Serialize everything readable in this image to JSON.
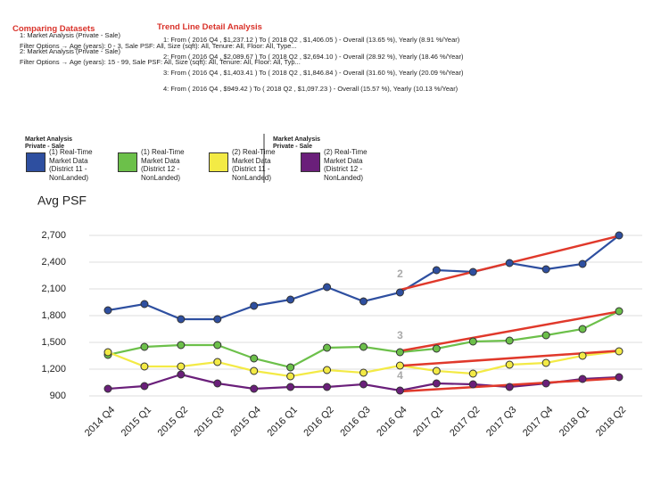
{
  "chart_data": {
    "type": "line",
    "header": {
      "compare_title": "Comparing Datasets",
      "compare_lines": [
        "1: Market Analysis (Private - Sale)",
        "Filter Options → Age (years): 0 - 3, Sale PSF: All, Size (sqft): All, Tenure: All, Floor: All, Type...",
        "2: Market Analysis (Private - Sale)",
        "Filter Options → Age (years): 15 - 99, Sale PSF: All, Size (sqft): All, Tenure: All, Floor: All, Typ..."
      ],
      "trend_title": "Trend Line Detail Analysis",
      "trend_lines": [
        "1: From ( 2016 Q4 , $1,237.12 ) To ( 2018 Q2 , $1,406.05 ) - Overall (13.65 %), Yearly (8.91 %/Year)",
        "2: From ( 2016 Q4 , $2,089.67 ) To ( 2018 Q2 , $2,694.10 ) - Overall (28.92 %), Yearly (18.46 %/Year)",
        "3: From ( 2016 Q4 , $1,403.41 ) To ( 2018 Q2 , $1,846.84 ) - Overall (31.60 %), Yearly (20.09 %/Year)",
        "4: From ( 2016 Q4 , $949.42 ) To ( 2018 Q2 , $1,097.23 ) - Overall (15.57 %), Yearly (10.13 %/Year)"
      ]
    },
    "legend_groups": [
      "Market Analysis Private - Sale",
      "Market Analysis Private - Sale"
    ],
    "y_label": "Avg PSF",
    "categories": [
      "2014 Q4",
      "2015 Q1",
      "2015 Q2",
      "2015 Q3",
      "2015 Q4",
      "2016 Q1",
      "2016 Q2",
      "2016 Q3",
      "2016 Q4",
      "2017 Q1",
      "2017 Q2",
      "2017 Q3",
      "2017 Q4",
      "2018 Q1",
      "2018 Q2"
    ],
    "series": [
      {
        "name": "(1) Real-Time Market Data (District 11 - NonLanded)",
        "color": "#2e4fa0",
        "values": [
          1860,
          1930,
          1760,
          1760,
          1910,
          1980,
          2120,
          1960,
          2060,
          2310,
          2290,
          2390,
          2320,
          2380,
          2700
        ]
      },
      {
        "name": "(1) Real-Time Market Data (District 12 - NonLanded)",
        "color": "#6cc04a",
        "values": [
          1360,
          1450,
          1470,
          1470,
          1320,
          1220,
          1440,
          1450,
          1390,
          1430,
          1510,
          1520,
          1580,
          1650,
          1850
        ]
      },
      {
        "name": "(2) Real-Time Market Data (District 11 - NonLanded)",
        "color": "#f3ea45",
        "values": [
          1390,
          1230,
          1230,
          1280,
          1180,
          1120,
          1190,
          1160,
          1240,
          1180,
          1150,
          1250,
          1270,
          1350,
          1400
        ]
      },
      {
        "name": "(2) Real-Time Market Data (District 12 - NonLanded)",
        "color": "#6a1f7a",
        "values": [
          980,
          1010,
          1140,
          1040,
          980,
          1000,
          1000,
          1030,
          960,
          1040,
          1030,
          1000,
          1040,
          1090,
          1110
        ]
      }
    ],
    "trends": [
      {
        "x": [
          "2016 Q4",
          "2018 Q2"
        ],
        "values": [
          1237.12,
          1406.05
        ]
      },
      {
        "x": [
          "2016 Q4",
          "2018 Q2"
        ],
        "values": [
          2089.67,
          2694.1
        ],
        "label": "2"
      },
      {
        "x": [
          "2016 Q4",
          "2018 Q2"
        ],
        "values": [
          1403.41,
          1846.84
        ],
        "label": "3"
      },
      {
        "x": [
          "2016 Q4",
          "2018 Q2"
        ],
        "values": [
          949.42,
          1097.23
        ],
        "label": "4"
      }
    ],
    "trend_color": "#e0392b",
    "ylim": [
      900,
      2700
    ],
    "yticks": [
      900,
      {
        "value": 1200,
        "label": "1,200"
      },
      {
        "value": 1500,
        "label": "1,500"
      },
      {
        "value": 1800,
        "label": "1,800"
      },
      {
        "value": 2100,
        "label": "2,100"
      },
      {
        "value": 2400,
        "label": "2,400"
      },
      {
        "value": 2700,
        "label": "2,700"
      }
    ],
    "grid": true
  }
}
